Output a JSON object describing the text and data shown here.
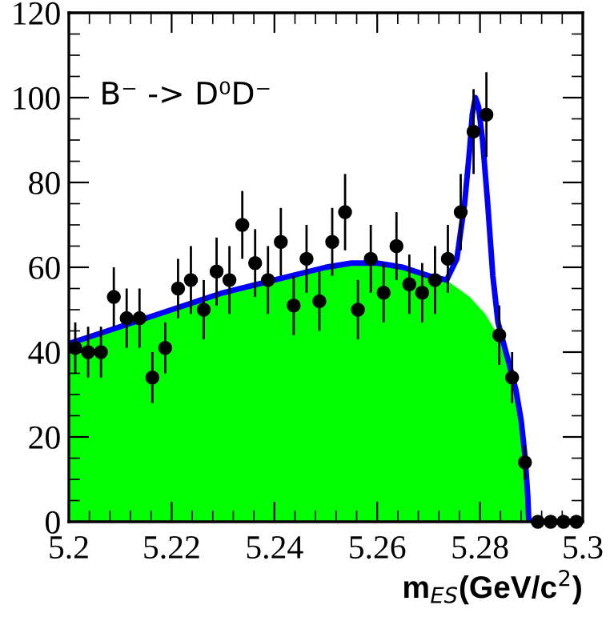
{
  "chart_data": {
    "type": "scatter",
    "xlabel": "m$_{ES}$(GeV/c$^{2}$)",
    "annotations": [
      "B⁻ -> D⁰D⁻"
    ],
    "xlim": [
      5.2,
      5.3
    ],
    "ylim": [
      0,
      120
    ],
    "xticks": [
      5.2,
      5.22,
      5.24,
      5.26,
      5.28,
      5.3
    ],
    "yticks": [
      0,
      20,
      40,
      60,
      80,
      100,
      120
    ],
    "series": [
      {
        "type": "area",
        "color": "#00ff00",
        "x": [
          5.2,
          5.21,
          5.22,
          5.23,
          5.24,
          5.25,
          5.255,
          5.26,
          5.265,
          5.27,
          5.274,
          5.278,
          5.281,
          5.2835,
          5.2855,
          5.287,
          5.288,
          5.2888,
          5.2893,
          5.2895
        ],
        "values": [
          42,
          46,
          50,
          54,
          57,
          60,
          61,
          61,
          60,
          58,
          56.5,
          53,
          49,
          44,
          38,
          31,
          24,
          15,
          6,
          0
        ]
      },
      {
        "type": "line",
        "color": "#0000ff",
        "x": [
          5.2,
          5.21,
          5.22,
          5.23,
          5.24,
          5.25,
          5.255,
          5.26,
          5.265,
          5.27,
          5.2735,
          5.2755,
          5.277,
          5.278,
          5.2785,
          5.2791,
          5.2797,
          5.2805,
          5.2815,
          5.2825,
          5.2835,
          5.2855,
          5.287,
          5.288,
          5.2888,
          5.2893,
          5.2895
        ],
        "values": [
          42,
          46,
          50,
          54,
          57,
          60,
          61,
          61,
          60,
          58,
          57,
          62,
          75,
          88,
          96,
          100,
          98,
          90,
          75,
          58,
          47,
          38,
          31,
          24,
          15,
          6,
          0
        ]
      },
      {
        "marker": "circle",
        "color": "#000000",
        "x": [
          5.20125,
          5.20375,
          5.20625,
          5.20875,
          5.21125,
          5.21375,
          5.21625,
          5.21875,
          5.22125,
          5.22375,
          5.22625,
          5.22875,
          5.23125,
          5.23375,
          5.23625,
          5.23875,
          5.24125,
          5.24375,
          5.24625,
          5.24875,
          5.25125,
          5.25375,
          5.25625,
          5.25875,
          5.26125,
          5.26375,
          5.26625,
          5.26875,
          5.27125,
          5.27375,
          5.27625,
          5.27875,
          5.28125,
          5.28375,
          5.28625,
          5.28875,
          5.29125,
          5.29375,
          5.29625,
          5.29875
        ],
        "values": [
          41,
          40,
          40,
          53,
          48,
          48,
          34,
          41,
          55,
          57,
          50,
          59,
          57,
          70,
          61,
          57,
          66,
          51,
          62,
          52,
          66,
          73,
          50,
          62,
          54,
          65,
          56,
          54,
          57,
          62,
          73,
          92,
          96,
          44,
          34,
          14,
          0,
          0,
          0,
          0
        ],
        "errors": [
          6,
          6,
          6,
          7,
          7,
          7,
          6,
          6,
          7,
          8,
          7,
          8,
          8,
          8,
          8,
          8,
          8,
          7,
          8,
          7,
          8,
          9,
          7,
          8,
          7,
          8,
          7,
          7,
          8,
          8,
          9,
          10,
          10,
          7,
          6,
          4,
          null,
          null,
          null,
          null
        ]
      }
    ]
  }
}
